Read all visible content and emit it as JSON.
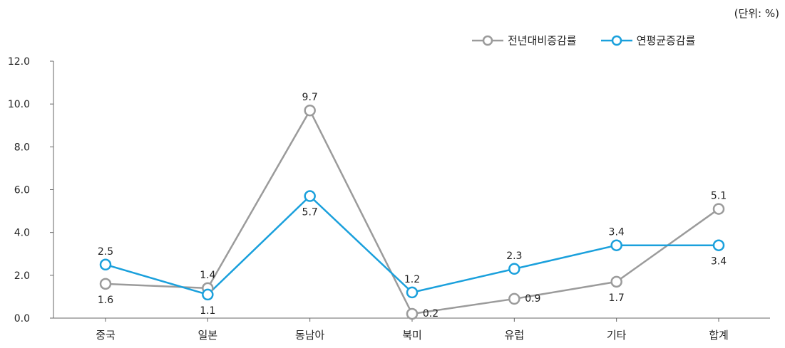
{
  "unit_label": "(단위: %)",
  "chart_data": {
    "type": "line",
    "categories": [
      "중국",
      "일본",
      "동남아",
      "북미",
      "유럽",
      "기타",
      "합계"
    ],
    "ylim": [
      0,
      12
    ],
    "yticks": [
      "0.0",
      "2.0",
      "4.0",
      "6.0",
      "8.0",
      "10.0",
      "12.0"
    ],
    "grid": false,
    "legend_position": "top-right",
    "series": [
      {
        "name": "전년대비증감률",
        "color": "#9b9b9b",
        "values": [
          1.6,
          1.4,
          9.7,
          0.2,
          0.9,
          1.7,
          5.1
        ],
        "labels": [
          "1.6",
          "1.4",
          "9.7",
          "0.2",
          "0.9",
          "1.7",
          "5.1"
        ]
      },
      {
        "name": "연평균증감률",
        "color": "#1aa0dc",
        "values": [
          2.5,
          1.1,
          5.7,
          1.2,
          2.3,
          3.4,
          3.4
        ],
        "labels": [
          "2.5",
          "1.1",
          "5.7",
          "1.2",
          "2.3",
          "3.4",
          "3.4"
        ]
      }
    ]
  }
}
